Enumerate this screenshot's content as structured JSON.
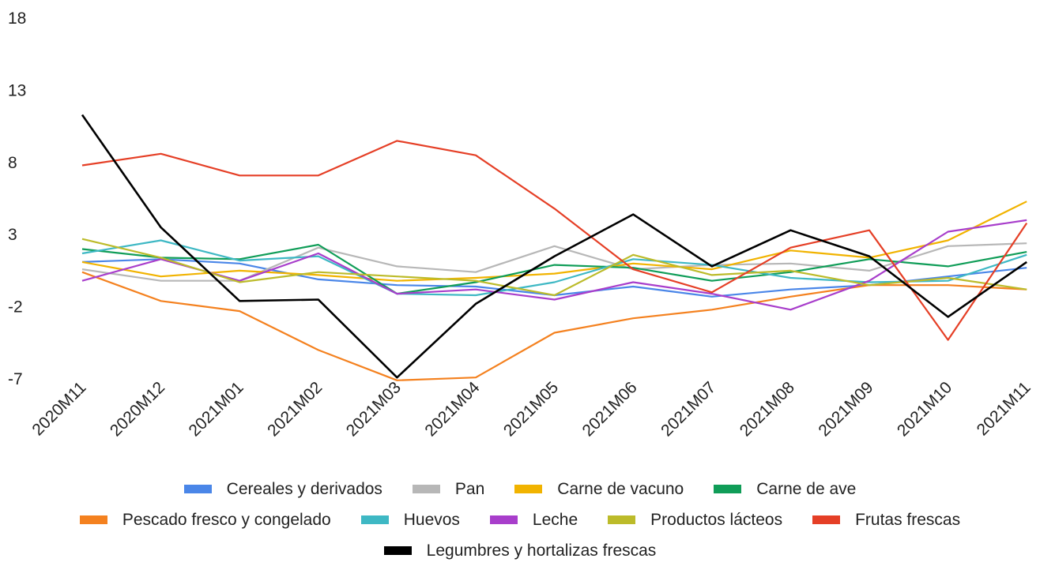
{
  "chart_data": {
    "type": "line",
    "categories": [
      "2020M11",
      "2020M12",
      "2021M01",
      "2021M02",
      "2021M03",
      "2021M04",
      "2021M05",
      "2021M06",
      "2021M07",
      "2021M08",
      "2021M09",
      "2021M10",
      "2021M11"
    ],
    "y_ticks": [
      "18",
      "13",
      "8",
      "3",
      "-2",
      "-7"
    ],
    "ylim": [
      -7,
      18
    ],
    "grid": false,
    "legend_position": "bottom",
    "series": [
      {
        "name": "Cereales y derivados",
        "color": "#4a86e8",
        "values": [
          1.1,
          1.3,
          1.0,
          -0.1,
          -0.5,
          -0.6,
          -1.2,
          -0.6,
          -1.3,
          -0.8,
          -0.5,
          0.1,
          0.7
        ]
      },
      {
        "name": "Pan",
        "color": "#b7b7b7",
        "values": [
          0.6,
          -0.2,
          -0.2,
          2.1,
          0.8,
          0.4,
          2.2,
          0.6,
          0.9,
          1.0,
          0.5,
          2.2,
          2.4
        ]
      },
      {
        "name": "Carne de vacuno",
        "color": "#f1b300",
        "values": [
          1.1,
          0.1,
          0.5,
          0.2,
          -0.2,
          0.0,
          0.3,
          1.0,
          0.6,
          1.9,
          1.4,
          2.6,
          5.3
        ]
      },
      {
        "name": "Carne de ave",
        "color": "#109d58",
        "values": [
          2.0,
          1.4,
          1.3,
          2.3,
          -1.1,
          -0.3,
          0.9,
          0.7,
          -0.2,
          0.4,
          1.3,
          0.8,
          1.8
        ]
      },
      {
        "name": "Pescado fresco y congelado",
        "color": "#f4811f",
        "values": [
          0.4,
          -1.6,
          -2.3,
          -5.0,
          -7.1,
          -6.9,
          -3.8,
          -2.8,
          -2.2,
          -1.3,
          -0.5,
          -0.5,
          -0.8
        ]
      },
      {
        "name": "Huevos",
        "color": "#3eb8c4",
        "values": [
          1.7,
          2.6,
          1.2,
          1.5,
          -1.1,
          -1.2,
          -0.3,
          1.3,
          0.9,
          0.0,
          -0.3,
          -0.2,
          1.6
        ]
      },
      {
        "name": "Leche",
        "color": "#a83ecb",
        "values": [
          -0.2,
          1.3,
          -0.2,
          1.7,
          -1.1,
          -0.8,
          -1.5,
          -0.3,
          -1.1,
          -2.2,
          -0.2,
          3.2,
          4.0
        ]
      },
      {
        "name": "Productos lácteos",
        "color": "#bcbb2a",
        "values": [
          2.7,
          1.4,
          -0.3,
          0.4,
          0.1,
          -0.2,
          -1.2,
          1.6,
          0.2,
          0.5,
          -0.5,
          0.0,
          -0.8
        ]
      },
      {
        "name": "Frutas frescas",
        "color": "#e53f26",
        "values": [
          7.8,
          8.6,
          7.1,
          7.1,
          9.5,
          8.5,
          4.8,
          0.6,
          -1.0,
          2.1,
          3.3,
          -4.3,
          3.8
        ]
      },
      {
        "name": "Legumbres y hortalizas frescas",
        "color": "#000000",
        "values": [
          11.3,
          3.5,
          -1.6,
          -1.5,
          -6.9,
          -1.8,
          1.5,
          4.4,
          0.8,
          3.3,
          1.5,
          -2.7,
          1.1
        ]
      }
    ]
  }
}
